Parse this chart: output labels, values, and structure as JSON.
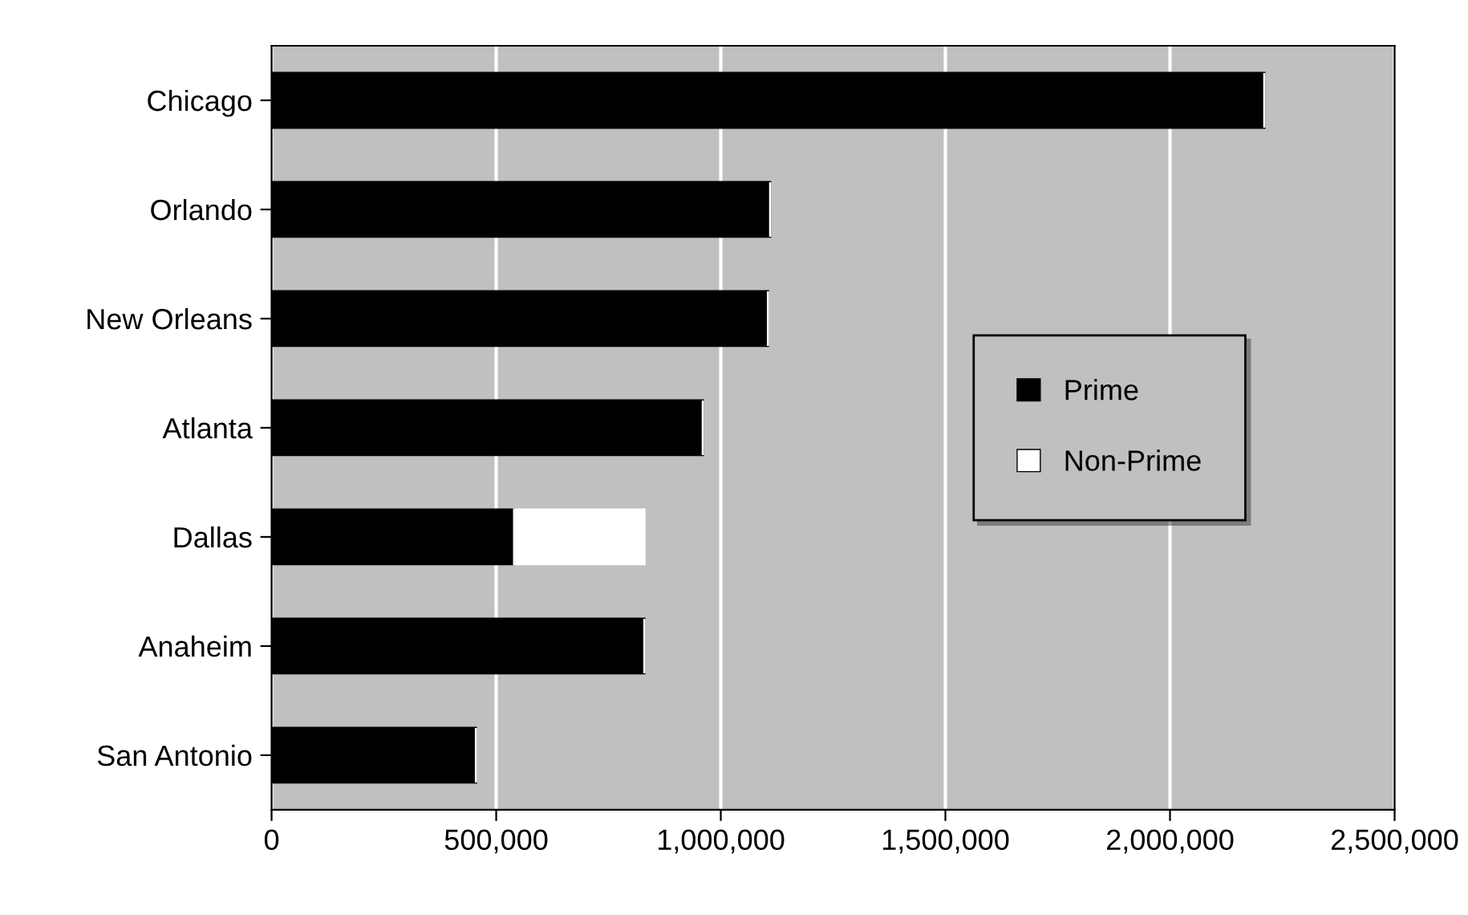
{
  "chart_data": {
    "type": "bar",
    "orientation": "horizontal",
    "stacked": true,
    "categories": [
      "Chicago",
      "Orlando",
      "New Orleans",
      "Atlanta",
      "Dallas",
      "Anaheim",
      "San Antonio"
    ],
    "series": [
      {
        "name": "Prime",
        "color": "#000000",
        "values": [
          2210000,
          1110000,
          1105000,
          960000,
          540000,
          830000,
          455000
        ]
      },
      {
        "name": "Non-Prime",
        "color": "#ffffff",
        "values": [
          0,
          0,
          0,
          0,
          290000,
          0,
          0
        ]
      }
    ],
    "xlim": [
      0,
      2500000
    ],
    "xticks": [
      0,
      {
        "value": 500000,
        "label": "500,000"
      },
      {
        "value": 1000000,
        "label": "1,000,000"
      },
      {
        "value": 1500000,
        "label": "1,500,000"
      },
      {
        "value": 2000000,
        "label": "2,000,000"
      },
      {
        "value": 2500000,
        "label": "2,500,000"
      }
    ],
    "grid": "x",
    "legend": "right"
  }
}
